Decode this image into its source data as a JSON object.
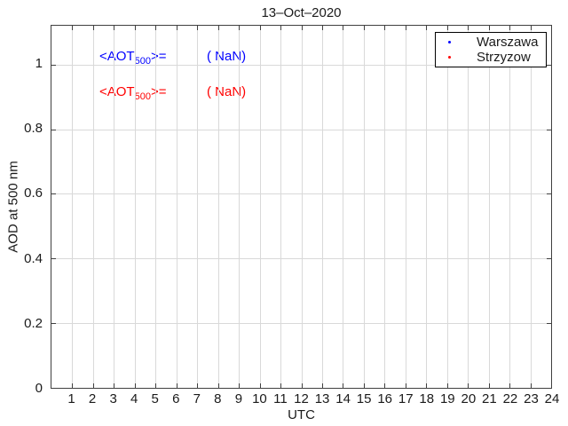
{
  "chart_data": {
    "type": "scatter",
    "title": "13–Oct–2020",
    "xlabel": "UTC",
    "ylabel": "AOD at 500 nm",
    "xlim": [
      0,
      24
    ],
    "ylim": [
      0,
      1.12
    ],
    "xticks": [
      1,
      2,
      3,
      4,
      5,
      6,
      7,
      8,
      9,
      10,
      11,
      12,
      13,
      14,
      15,
      16,
      17,
      18,
      19,
      20,
      21,
      22,
      23,
      24
    ],
    "ytick_values": [
      0,
      0.2,
      0.4,
      0.6,
      0.8,
      1
    ],
    "ytick_labels": [
      "0",
      "0.2",
      "0.4",
      "0.6",
      "0.8",
      "1"
    ],
    "grid": true,
    "grid_color": "#d9d9d9",
    "axis_color": "#404040",
    "legend_position": "top-right",
    "series": [
      {
        "name": "Warszawa",
        "color": "#0000ff",
        "marker": "point",
        "x": [],
        "y": []
      },
      {
        "name": "Strzyzow",
        "color": "#ff0000",
        "marker": "point",
        "x": [],
        "y": []
      }
    ],
    "annotations": [
      {
        "label_prefix": "<AOT",
        "label_sub": "500",
        "label_suffix": ">=",
        "value": "( NaN)",
        "color": "#0000ff"
      },
      {
        "label_prefix": "<AOT",
        "label_sub": "500",
        "label_suffix": ">=",
        "value": "( NaN)",
        "color": "#ff0000"
      }
    ]
  }
}
